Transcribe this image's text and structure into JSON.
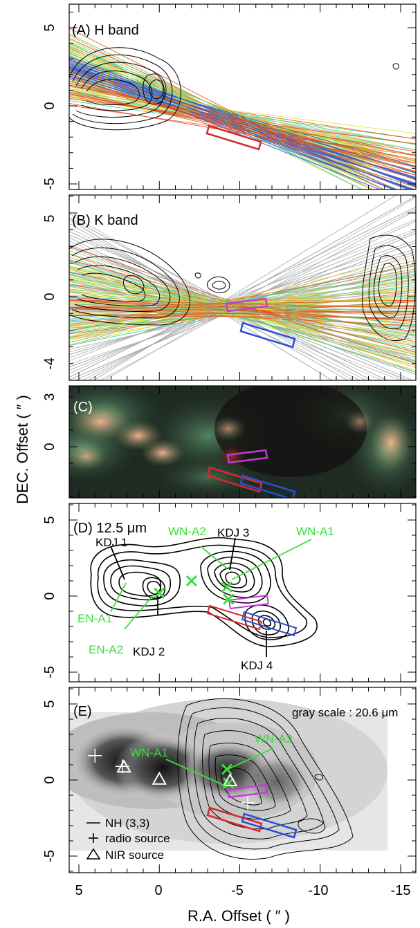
{
  "figure": {
    "x_axis_label": "R.A. Offset ( ″ )",
    "y_axis_label": "DEC. Offset ( ″ )",
    "x_ticks": [
      "5",
      "0",
      "-5",
      "-10",
      "-15"
    ]
  },
  "chart_data": [
    {
      "type": "line",
      "panel": "A",
      "title": "(A) H band",
      "xlim": [
        5,
        -15.5
      ],
      "ylim": [
        -5.4,
        6.8
      ],
      "y_ticks": [
        "5",
        "0",
        "-5"
      ],
      "description_series": [
        "polarization vectors (rainbow colored)",
        "H-band intensity contours"
      ],
      "boxes": [
        {
          "color": "#d62a2a",
          "center": [
            -3.4,
            -1.8
          ]
        }
      ],
      "colors": {
        "red": "#d62a2a"
      }
    },
    {
      "type": "line",
      "panel": "B",
      "title": "(B) K band",
      "xlim": [
        5,
        -15.5
      ],
      "ylim": [
        -5.4,
        6.8
      ],
      "y_ticks": [
        "5",
        "0",
        "-4"
      ],
      "boxes": [
        {
          "color": "#c43bd6",
          "center": [
            -5.0,
            -0.5
          ]
        },
        {
          "color": "#2a4fd6",
          "center": [
            -6.6,
            -2.2
          ]
        }
      ]
    },
    {
      "type": "heatmap",
      "panel": "C",
      "title": "(C)",
      "y_ticks": [
        "3",
        "0"
      ],
      "boxes": [
        {
          "color": "#c43bd6",
          "center": [
            -5.0,
            -0.5
          ]
        },
        {
          "color": "#d62a2a",
          "center": [
            -3.4,
            -1.8
          ]
        },
        {
          "color": "#2a4fd6",
          "center": [
            -6.6,
            -2.2
          ]
        }
      ]
    },
    {
      "type": "scatter",
      "panel": "D",
      "title": "(D) 12.5 μm",
      "y_ticks": [
        "5",
        "0",
        "-5"
      ],
      "points": [
        {
          "label": "EN-A1",
          "x": -2.0,
          "y": 1.0,
          "color": "#3ddc3d"
        },
        {
          "label": "EN-A2",
          "x": 0.0,
          "y": 0.2,
          "color": "#3ddc3d"
        },
        {
          "label": "WN-A2",
          "x": -4.2,
          "y": 0.6,
          "color": "#3ddc3d"
        },
        {
          "label": "WN-A1",
          "x": -4.3,
          "y": -0.2,
          "color": "#3ddc3d"
        }
      ],
      "sources": [
        {
          "label": "KDJ 1",
          "x": -2.0,
          "y": 1.0
        },
        {
          "label": "KDJ 2",
          "x": 0.0,
          "y": 0.2
        },
        {
          "label": "KDJ 3",
          "x": -4.3,
          "y": 0.5
        },
        {
          "label": "KDJ 4",
          "x": -7.2,
          "y": -2.6
        }
      ]
    },
    {
      "type": "scatter",
      "panel": "E",
      "title": "(E)",
      "y_ticks": [
        "5",
        "0",
        "-5"
      ],
      "annotation": "gray scale : 20.6 μm",
      "points": [
        {
          "label": "WN-A2",
          "x": -4.2,
          "y": 0.7,
          "color": "#3ddc3d"
        },
        {
          "label": "WN-A1",
          "x": -4.3,
          "y": -0.2,
          "color": "#3ddc3d"
        }
      ],
      "legend": [
        "NH (3,3)",
        "radio source",
        "NIR source"
      ],
      "nir_sources": [
        [
          2.2,
          0.9
        ],
        [
          0.0,
          0.1
        ],
        [
          -4.4,
          0.0
        ]
      ],
      "radio_sources": [
        [
          4.0,
          1.6
        ],
        [
          2.3,
          0.9
        ],
        [
          -5.5,
          -1.5
        ]
      ]
    }
  ]
}
